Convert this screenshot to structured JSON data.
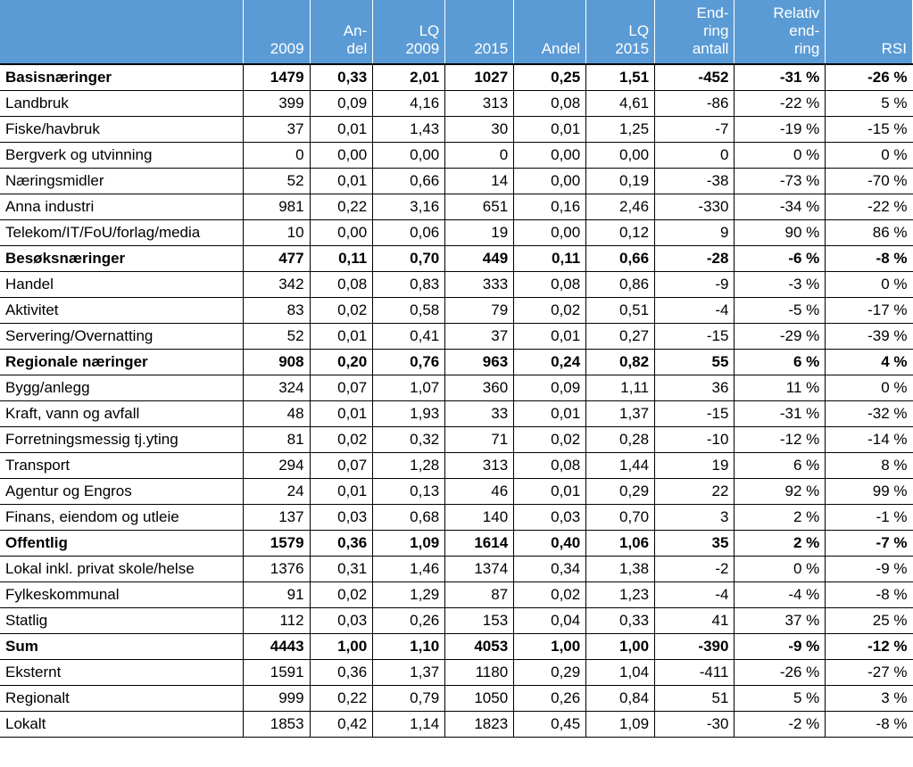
{
  "table": {
    "header_bg": "#5b9bd5",
    "header_fg": "#ffffff",
    "columns": [
      "",
      "2009",
      "An-\ndel",
      "LQ\n2009",
      "2015",
      "Andel",
      "LQ\n2015",
      "End-\nring\nantall",
      "Relativ\nend-\nring",
      "RSI"
    ],
    "rows": [
      {
        "bold": true,
        "thick": true,
        "cells": [
          "Basisnæringer",
          "1479",
          "0,33",
          "2,01",
          "1027",
          "0,25",
          "1,51",
          "-452",
          "-31 %",
          "-26 %"
        ]
      },
      {
        "bold": false,
        "cells": [
          "Landbruk",
          "399",
          "0,09",
          "4,16",
          "313",
          "0,08",
          "4,61",
          "-86",
          "-22 %",
          "5 %"
        ]
      },
      {
        "bold": false,
        "cells": [
          "Fiske/havbruk",
          "37",
          "0,01",
          "1,43",
          "30",
          "0,01",
          "1,25",
          "-7",
          "-19 %",
          "-15 %"
        ]
      },
      {
        "bold": false,
        "cells": [
          "Bergverk og utvinning",
          "0",
          "0,00",
          "0,00",
          "0",
          "0,00",
          "0,00",
          "0",
          "0 %",
          "0 %"
        ]
      },
      {
        "bold": false,
        "cells": [
          "Næringsmidler",
          "52",
          "0,01",
          "0,66",
          "14",
          "0,00",
          "0,19",
          "-38",
          "-73 %",
          "-70 %"
        ]
      },
      {
        "bold": false,
        "cells": [
          "Anna industri",
          "981",
          "0,22",
          "3,16",
          "651",
          "0,16",
          "2,46",
          "-330",
          "-34 %",
          "-22 %"
        ]
      },
      {
        "bold": false,
        "cells": [
          "Telekom/IT/FoU/forlag/media",
          "10",
          "0,00",
          "0,06",
          "19",
          "0,00",
          "0,12",
          "9",
          "90 %",
          "86 %"
        ]
      },
      {
        "bold": true,
        "cells": [
          "Besøksnæringer",
          "477",
          "0,11",
          "0,70",
          "449",
          "0,11",
          "0,66",
          "-28",
          "-6 %",
          "-8 %"
        ]
      },
      {
        "bold": false,
        "cells": [
          "Handel",
          "342",
          "0,08",
          "0,83",
          "333",
          "0,08",
          "0,86",
          "-9",
          "-3 %",
          "0 %"
        ]
      },
      {
        "bold": false,
        "cells": [
          "Aktivitet",
          "83",
          "0,02",
          "0,58",
          "79",
          "0,02",
          "0,51",
          "-4",
          "-5 %",
          "-17 %"
        ]
      },
      {
        "bold": false,
        "cells": [
          "Servering/Overnatting",
          "52",
          "0,01",
          "0,41",
          "37",
          "0,01",
          "0,27",
          "-15",
          "-29 %",
          "-39 %"
        ]
      },
      {
        "bold": true,
        "cells": [
          "Regionale næringer",
          "908",
          "0,20",
          "0,76",
          "963",
          "0,24",
          "0,82",
          "55",
          "6 %",
          "4 %"
        ]
      },
      {
        "bold": false,
        "cells": [
          "Bygg/anlegg",
          "324",
          "0,07",
          "1,07",
          "360",
          "0,09",
          "1,11",
          "36",
          "11 %",
          "0 %"
        ]
      },
      {
        "bold": false,
        "cells": [
          "Kraft, vann og avfall",
          "48",
          "0,01",
          "1,93",
          "33",
          "0,01",
          "1,37",
          "-15",
          "-31 %",
          "-32 %"
        ]
      },
      {
        "bold": false,
        "cells": [
          "Forretningsmessig tj.yting",
          "81",
          "0,02",
          "0,32",
          "71",
          "0,02",
          "0,28",
          "-10",
          "-12 %",
          "-14 %"
        ]
      },
      {
        "bold": false,
        "cells": [
          "Transport",
          "294",
          "0,07",
          "1,28",
          "313",
          "0,08",
          "1,44",
          "19",
          "6 %",
          "8 %"
        ]
      },
      {
        "bold": false,
        "cells": [
          "Agentur og Engros",
          "24",
          "0,01",
          "0,13",
          "46",
          "0,01",
          "0,29",
          "22",
          "92 %",
          "99 %"
        ]
      },
      {
        "bold": false,
        "cells": [
          "Finans, eiendom og utleie",
          "137",
          "0,03",
          "0,68",
          "140",
          "0,03",
          "0,70",
          "3",
          "2 %",
          "-1 %"
        ]
      },
      {
        "bold": true,
        "cells": [
          "Offentlig",
          "1579",
          "0,36",
          "1,09",
          "1614",
          "0,40",
          "1,06",
          "35",
          "2 %",
          "-7 %"
        ]
      },
      {
        "bold": false,
        "cells": [
          "Lokal inkl. privat skole/helse",
          "1376",
          "0,31",
          "1,46",
          "1374",
          "0,34",
          "1,38",
          "-2",
          "0 %",
          "-9 %"
        ]
      },
      {
        "bold": false,
        "cells": [
          "Fylkeskommunal",
          "91",
          "0,02",
          "1,29",
          "87",
          "0,02",
          "1,23",
          "-4",
          "-4 %",
          "-8 %"
        ]
      },
      {
        "bold": false,
        "cells": [
          "Statlig",
          "112",
          "0,03",
          "0,26",
          "153",
          "0,04",
          "0,33",
          "41",
          "37 %",
          "25 %"
        ]
      },
      {
        "bold": true,
        "cells": [
          "Sum",
          "4443",
          "1,00",
          "1,10",
          "4053",
          "1,00",
          "1,00",
          "-390",
          "-9 %",
          "-12 %"
        ]
      },
      {
        "bold": false,
        "cells": [
          "Eksternt",
          "1591",
          "0,36",
          "1,37",
          "1180",
          "0,29",
          "1,04",
          "-411",
          "-26 %",
          "-27 %"
        ]
      },
      {
        "bold": false,
        "cells": [
          "Regionalt",
          "999",
          "0,22",
          "0,79",
          "1050",
          "0,26",
          "0,84",
          "51",
          "5 %",
          "3 %"
        ]
      },
      {
        "bold": false,
        "cells": [
          "Lokalt",
          "1853",
          "0,42",
          "1,14",
          "1823",
          "0,45",
          "1,09",
          "-30",
          "-2 %",
          "-8 %"
        ]
      }
    ]
  }
}
